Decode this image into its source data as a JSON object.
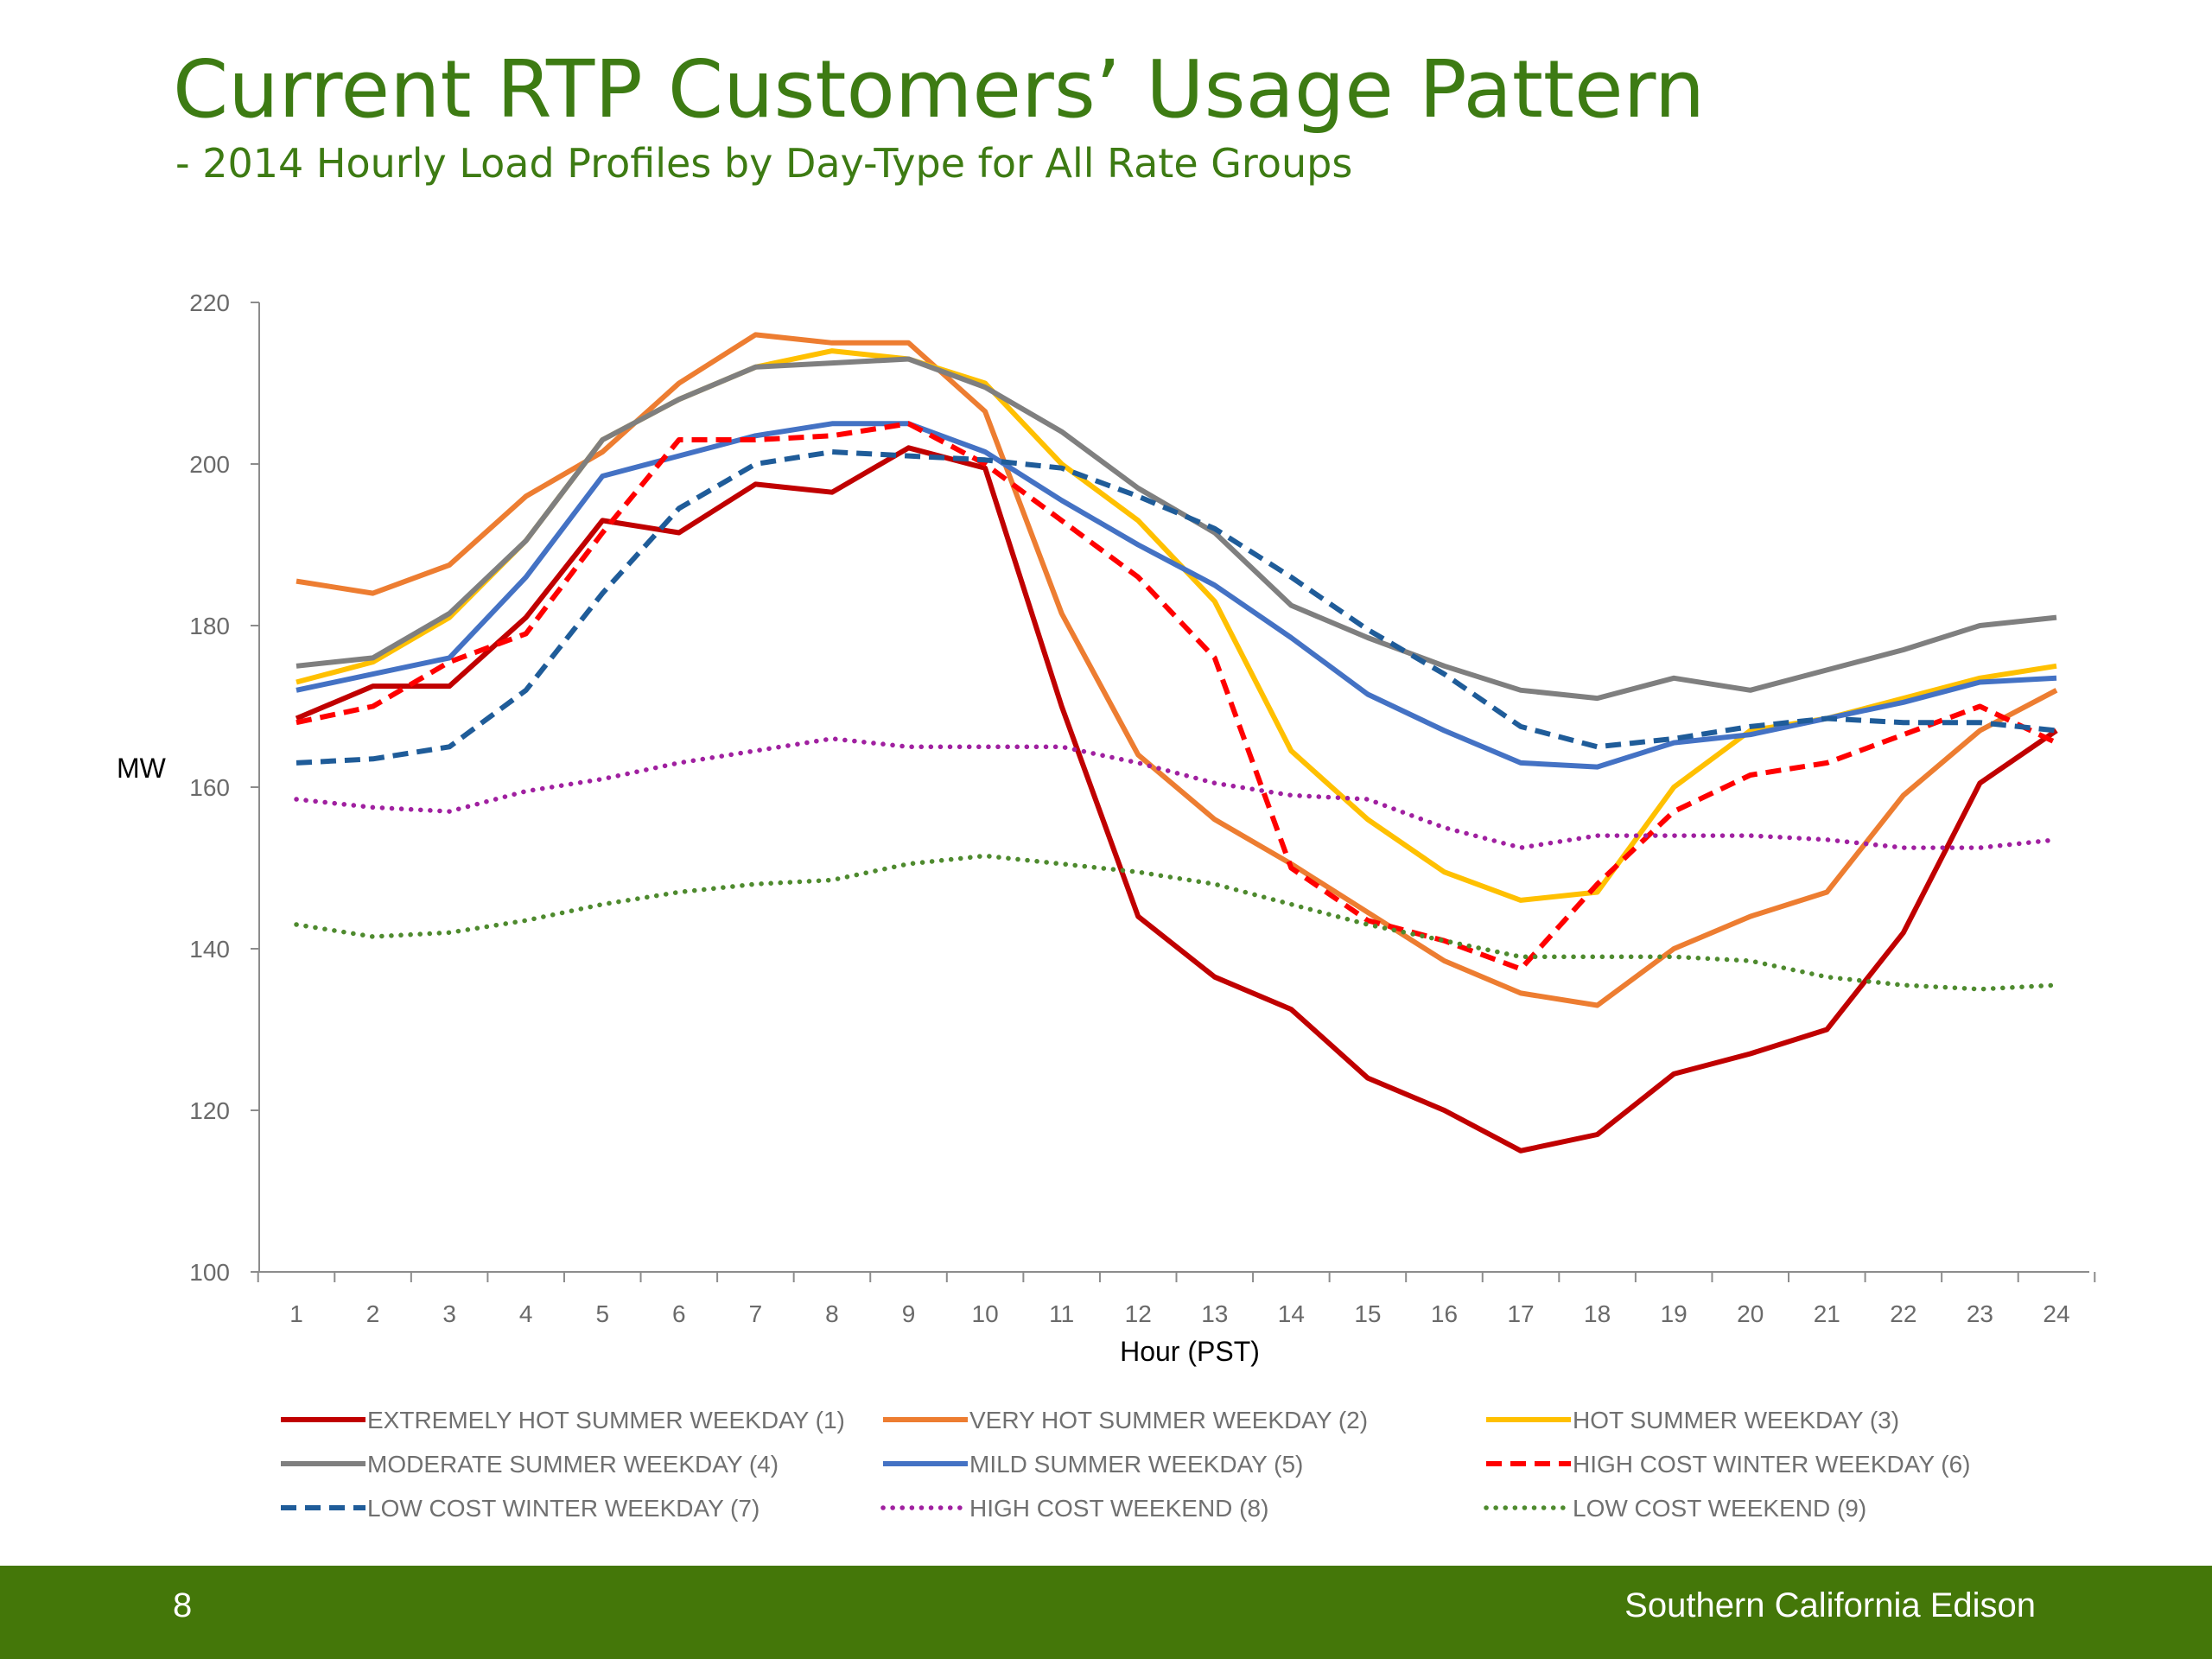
{
  "title": "Current RTP Customers’ Usage Pattern",
  "subtitle": "- 2014 Hourly Load Profiles by Day-Type for All Rate Groups",
  "footer": {
    "page_number": "8",
    "brand": "Southern California Edison"
  },
  "colors": {
    "title": "#3d7b13",
    "footer_bg": "#447709"
  },
  "chart_data": {
    "type": "line",
    "xlabel": "Hour (PST)",
    "ylabel": "MW",
    "x": [
      1,
      2,
      3,
      4,
      5,
      6,
      7,
      8,
      9,
      10,
      11,
      12,
      13,
      14,
      15,
      16,
      17,
      18,
      19,
      20,
      21,
      22,
      23,
      24
    ],
    "x_ticks": [
      "1",
      "2",
      "3",
      "4",
      "5",
      "6",
      "7",
      "8",
      "9",
      "10",
      "11",
      "12",
      "13",
      "14",
      "15",
      "16",
      "17",
      "18",
      "19",
      "20",
      "21",
      "22",
      "23",
      "24"
    ],
    "ylim": [
      100,
      220
    ],
    "y_ticks": [
      100,
      120,
      140,
      160,
      180,
      200,
      220
    ],
    "grid": false,
    "legend_position": "bottom",
    "series": [
      {
        "name": "EXTREMELY HOT SUMMER WEEKDAY (1)",
        "color": "#c00000",
        "style": "solid",
        "values": [
          168.5,
          172.5,
          172.5,
          181,
          193,
          191.5,
          197.5,
          196.5,
          202,
          199.5,
          170,
          144,
          136.5,
          132.5,
          124,
          120,
          115,
          117,
          124.5,
          127,
          130,
          142,
          160.5,
          167
        ]
      },
      {
        "name": "VERY HOT SUMMER WEEKDAY (2)",
        "color": "#ed7d31",
        "style": "solid",
        "values": [
          185.5,
          184,
          187.5,
          196,
          201.5,
          210,
          216,
          215,
          215,
          206.5,
          181.5,
          164,
          156,
          150.5,
          144.5,
          138.5,
          134.5,
          133,
          140,
          144,
          147,
          159,
          167,
          172
        ]
      },
      {
        "name": "HOT SUMMER WEEKDAY (3)",
        "color": "#ffc000",
        "style": "solid",
        "values": [
          173,
          175.5,
          181,
          190.5,
          203,
          208,
          212,
          214,
          213,
          210,
          200,
          193,
          183,
          164.5,
          156,
          149.5,
          146,
          147,
          160,
          167,
          168.5,
          171,
          173.5,
          175
        ]
      },
      {
        "name": "MODERATE SUMMER WEEKDAY (4)",
        "color": "#7f7f7f",
        "style": "solid",
        "values": [
          175,
          176,
          181.5,
          190.5,
          203,
          208,
          212,
          212.5,
          213,
          209.5,
          204,
          197,
          191.5,
          182.5,
          178.5,
          175,
          172,
          171,
          173.5,
          172,
          174.5,
          177,
          180,
          181
        ]
      },
      {
        "name": "MILD SUMMER WEEKDAY (5)",
        "color": "#4472c4",
        "style": "solid",
        "values": [
          172,
          174,
          176,
          186,
          198.5,
          201,
          203.5,
          205,
          205,
          201.5,
          195.5,
          190,
          185,
          178.5,
          171.5,
          167,
          163,
          162.5,
          165.5,
          166.5,
          168.5,
          170.5,
          173,
          173.5
        ]
      },
      {
        "name": "HIGH COST WINTER WEEKDAY (6)",
        "color": "#ff0000",
        "style": "dash",
        "values": [
          168,
          170,
          175.5,
          179,
          191.5,
          203,
          203,
          203.5,
          205,
          200,
          193,
          186,
          176,
          150,
          143.5,
          141,
          137.5,
          148,
          157,
          161.5,
          163,
          166.5,
          170,
          165.5
        ]
      },
      {
        "name": "LOW COST WINTER WEEKDAY (7)",
        "color": "#1f5c99",
        "style": "dash",
        "values": [
          163,
          163.5,
          165,
          172,
          184,
          194.5,
          200,
          201.5,
          201,
          200.5,
          199.5,
          196,
          192,
          186,
          179.5,
          174,
          167.5,
          165,
          166,
          167.5,
          168.5,
          168,
          168,
          167
        ]
      },
      {
        "name": "HIGH COST WEEKEND (8)",
        "color": "#a020a0",
        "style": "dot",
        "values": [
          158.5,
          157.5,
          157,
          159.5,
          161,
          163,
          164.5,
          166,
          165,
          165,
          165,
          163,
          160.5,
          159,
          158.5,
          155,
          152.5,
          154,
          154,
          154,
          153.5,
          152.5,
          152.5,
          153.5
        ]
      },
      {
        "name": "LOW COST WEEKEND (9)",
        "color": "#4e8a2e",
        "style": "dot",
        "values": [
          143,
          141.5,
          142,
          143.5,
          145.5,
          147,
          148,
          148.5,
          150.5,
          151.5,
          150.5,
          149.5,
          148,
          145.5,
          143,
          141,
          139,
          139,
          139,
          138.5,
          136.5,
          135.5,
          135,
          135.5
        ]
      }
    ]
  }
}
